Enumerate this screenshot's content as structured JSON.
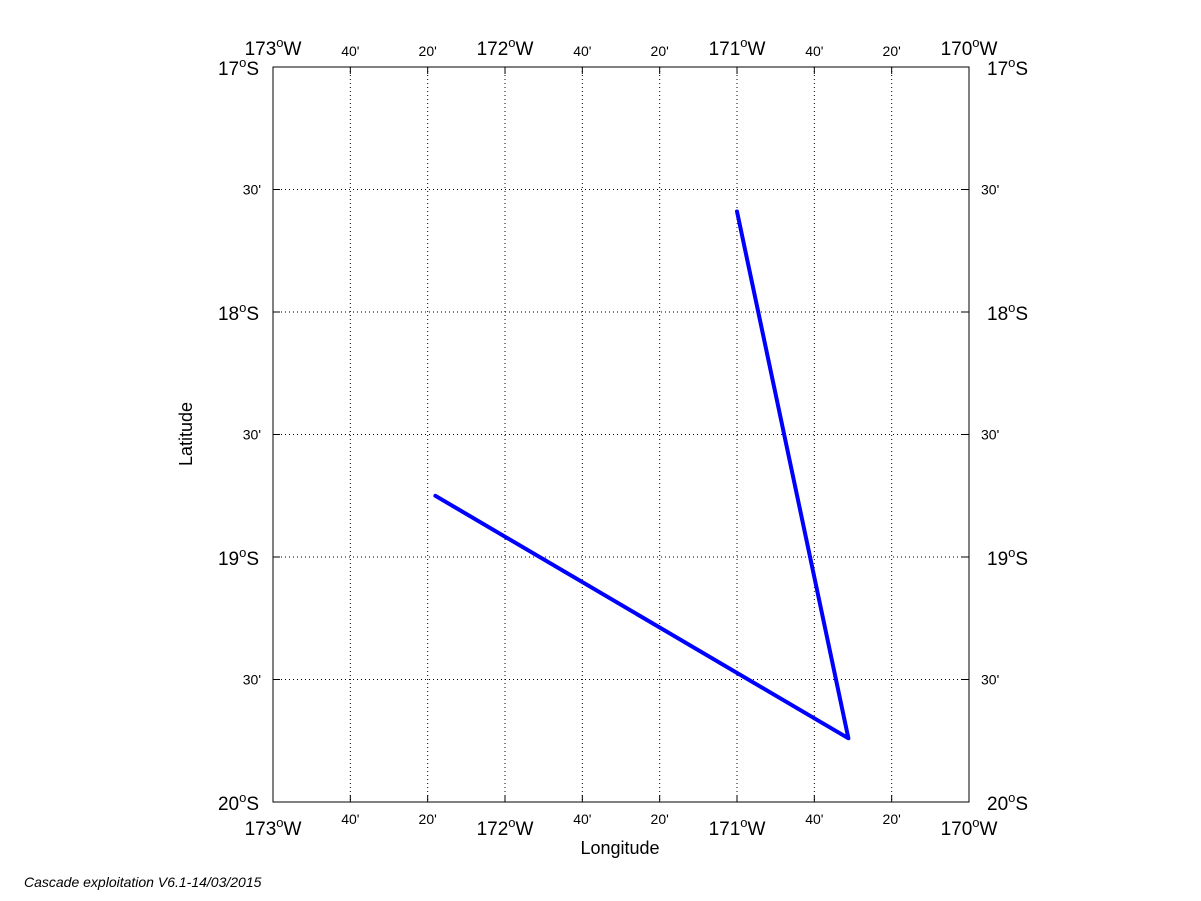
{
  "map": {
    "projection": "plate-carree",
    "lon_range": [
      -173,
      -170
    ],
    "lat_range": [
      -20,
      -17
    ],
    "grid": "dotted",
    "track_color": "#0000ff",
    "frame_color": "#000000",
    "x_ticks": [
      {
        "lon": -173.0,
        "deg": "173",
        "hemi": "W",
        "kind": "major"
      },
      {
        "lon": -172.6667,
        "text": "40'",
        "kind": "minor"
      },
      {
        "lon": -172.3333,
        "text": "20'",
        "kind": "minor"
      },
      {
        "lon": -172.0,
        "deg": "172",
        "hemi": "W",
        "kind": "major"
      },
      {
        "lon": -171.6667,
        "text": "40'",
        "kind": "minor"
      },
      {
        "lon": -171.3333,
        "text": "20'",
        "kind": "minor"
      },
      {
        "lon": -171.0,
        "deg": "171",
        "hemi": "W",
        "kind": "major"
      },
      {
        "lon": -170.6667,
        "text": "40'",
        "kind": "minor"
      },
      {
        "lon": -170.3333,
        "text": "20'",
        "kind": "minor"
      },
      {
        "lon": -170.0,
        "deg": "170",
        "hemi": "W",
        "kind": "major"
      }
    ],
    "y_ticks": [
      {
        "lat": -17.0,
        "deg": "17",
        "hemi": "S",
        "kind": "major"
      },
      {
        "lat": -17.5,
        "text": "30'",
        "kind": "minor"
      },
      {
        "lat": -18.0,
        "deg": "18",
        "hemi": "S",
        "kind": "major"
      },
      {
        "lat": -18.5,
        "text": "30'",
        "kind": "minor"
      },
      {
        "lat": -19.0,
        "deg": "19",
        "hemi": "S",
        "kind": "major"
      },
      {
        "lat": -19.5,
        "text": "30'",
        "kind": "minor"
      },
      {
        "lat": -20.0,
        "deg": "20",
        "hemi": "S",
        "kind": "major"
      }
    ],
    "xlabel": "Longitude",
    "ylabel": "Latitude",
    "track": [
      {
        "lon": -171.0,
        "lat": -17.59
      },
      {
        "lon": -170.52,
        "lat": -19.74
      },
      {
        "lon": -172.3,
        "lat": -18.75
      }
    ]
  },
  "footer": "Cascade exploitation V6.1-14/03/2015"
}
